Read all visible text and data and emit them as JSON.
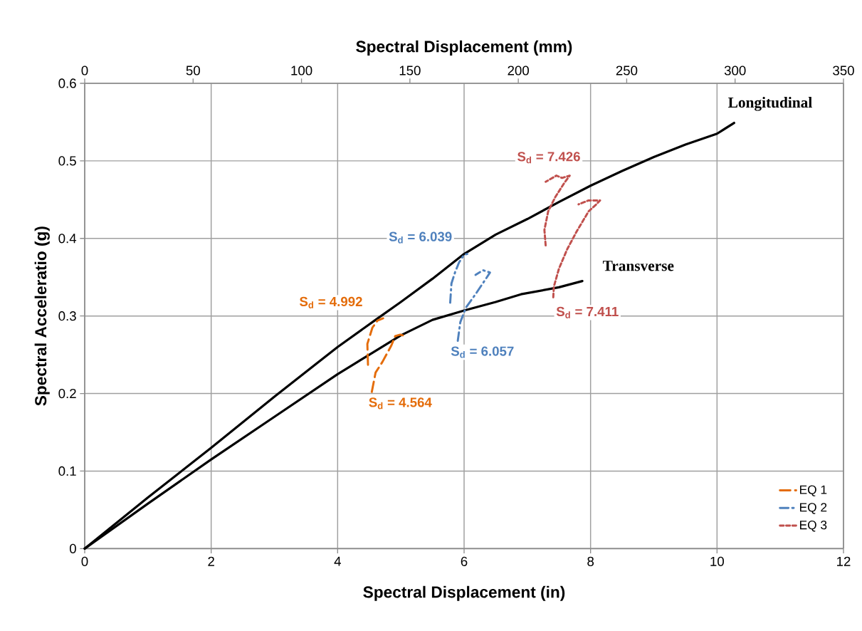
{
  "chart_data": {
    "type": "line",
    "xlabel": "Spectral Displacement (in)",
    "x2label": "Spectral Displacement (mm)",
    "ylabel": "Spectral Acceleratio (g)",
    "xlim": [
      0,
      12
    ],
    "xticks": [
      0,
      2,
      4,
      6,
      8,
      10,
      12
    ],
    "x2lim": [
      0,
      350
    ],
    "x2ticks": [
      0,
      50,
      100,
      150,
      200,
      250,
      300,
      350
    ],
    "ylim": [
      0,
      0.6
    ],
    "yticks": [
      0,
      0.1,
      0.2,
      0.3,
      0.4,
      0.5,
      0.6
    ],
    "grid": true,
    "legend": "bottom right",
    "marker": "none",
    "series": [
      {
        "name": "Longitudinal",
        "color": "#000000",
        "line_style": "solid",
        "x": [
          0,
          1,
          2,
          3,
          4,
          4.6,
          5,
          5.5,
          6,
          6.5,
          7,
          7.5,
          8,
          8.5,
          9,
          9.5,
          10,
          10.27
        ],
        "values": [
          0,
          0.066,
          0.13,
          0.196,
          0.26,
          0.295,
          0.318,
          0.348,
          0.38,
          0.405,
          0.425,
          0.447,
          0.468,
          0.487,
          0.505,
          0.521,
          0.535,
          0.549
        ]
      },
      {
        "name": "Transverse",
        "color": "#000000",
        "line_style": "solid",
        "x": [
          0,
          1,
          2,
          3,
          4,
          4.5,
          5,
          5.5,
          6,
          6.5,
          6.9,
          7.5,
          7.87
        ],
        "values": [
          0,
          0.058,
          0.115,
          0.17,
          0.225,
          0.25,
          0.275,
          0.295,
          0.307,
          0.318,
          0.328,
          0.337,
          0.345
        ]
      },
      {
        "name": "EQ 1",
        "color": "#e46c0a",
        "line_style": "dashed",
        "x": [
          4.48,
          4.47,
          4.55,
          4.63,
          4.72,
          null,
          4.54,
          4.6,
          4.71,
          4.85,
          4.91,
          4.99,
          5.03
        ],
        "values": [
          0.237,
          0.264,
          0.285,
          0.294,
          0.297,
          null,
          0.202,
          0.227,
          0.241,
          0.262,
          0.274,
          0.276,
          0.275
        ]
      },
      {
        "name": "EQ 2",
        "color": "#4f81bd",
        "line_style": "dashdot",
        "x": [
          5.78,
          5.8,
          5.86,
          5.92,
          6.0,
          6.05,
          null,
          5.9,
          5.94,
          6.03,
          6.18,
          6.32,
          6.41,
          6.3,
          6.18
        ],
        "values": [
          0.317,
          0.342,
          0.357,
          0.369,
          0.379,
          0.38,
          null,
          0.268,
          0.292,
          0.311,
          0.328,
          0.345,
          0.356,
          0.359,
          0.353
        ]
      },
      {
        "name": "EQ 3",
        "color": "#c0504d",
        "line_style": "dotted",
        "x": [
          7.29,
          7.27,
          7.33,
          7.44,
          7.58,
          7.67,
          7.55,
          7.46,
          7.29,
          null,
          7.41,
          7.42,
          7.5,
          7.63,
          7.78,
          7.97,
          8.08,
          8.15,
          7.97,
          7.81
        ],
        "values": [
          0.391,
          0.411,
          0.435,
          0.453,
          0.471,
          0.481,
          0.478,
          0.481,
          0.473,
          null,
          0.324,
          0.338,
          0.361,
          0.386,
          0.409,
          0.435,
          0.443,
          0.449,
          0.449,
          0.444
        ]
      }
    ],
    "annotations": [
      {
        "text": "S$_{d}$ = 4.992",
        "x": 4.63,
        "y": 0.294
      },
      {
        "text": "S$_{d}$ = 4.564",
        "x": 4.54,
        "y": 0.202
      },
      {
        "text": "S$_{d}$ = 6.039",
        "x": 6.0,
        "y": 0.379
      },
      {
        "text": "S$_{d}$ = 6.057",
        "x": 5.9,
        "y": 0.268
      },
      {
        "text": "S$_{d}$ = 7.426",
        "x": 7.67,
        "y": 0.481
      },
      {
        "text": "S$_{d}$ = 7.411",
        "x": 7.41,
        "y": 0.324
      }
    ]
  }
}
